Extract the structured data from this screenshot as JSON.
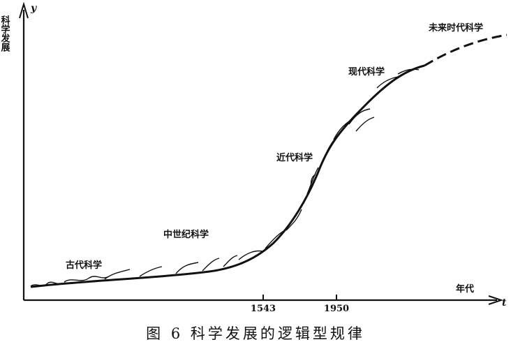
{
  "diagram": {
    "y_axis_label": "y",
    "y_axis_title": "科学发展",
    "x_axis_label": "t",
    "x_axis_title": "年代",
    "tick_1543": "1543",
    "tick_1950": "1950",
    "stage_ancient": "古代科学",
    "stage_medieval": "中世纪科学",
    "stage_early_modern": "近代科学",
    "stage_modern": "现代科学",
    "stage_future": "未来时代科学"
  },
  "caption": "图 6   科学发展的逻辑型规律"
}
